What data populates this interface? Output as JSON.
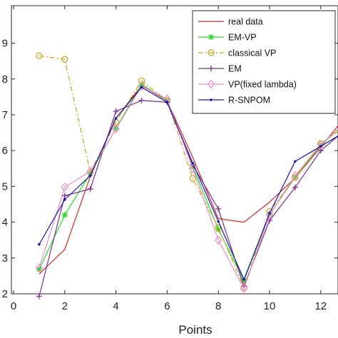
{
  "chart_data": {
    "type": "line",
    "xlabel": "Points",
    "ylabel": "",
    "xlim": [
      0,
      13
    ],
    "ylim": [
      0.2,
      0.9
    ],
    "x_ticks": [
      0,
      2,
      4,
      6,
      8,
      10,
      12
    ],
    "y_ticks": [
      0.2,
      0.3,
      0.4,
      0.5,
      0.6,
      0.7,
      0.8,
      0.9
    ],
    "y_tick_labels": [
      "2",
      "3",
      "4",
      "5",
      "6",
      "7",
      "8",
      "9"
    ],
    "grid": false,
    "legend_position": "top-right",
    "x": [
      1,
      2,
      3,
      4,
      5,
      6,
      7,
      8,
      9,
      10,
      11,
      12,
      13
    ],
    "series": [
      {
        "name": "real data",
        "color": "#d62728",
        "dash": "solid",
        "marker": "none",
        "values": [
          0.255,
          0.324,
          0.528,
          0.69,
          0.782,
          0.739,
          0.581,
          0.41,
          0.4,
          0.456,
          0.524,
          0.61,
          0.698
        ]
      },
      {
        "name": "EM-VP",
        "color": "#22dd22",
        "dash": "solid",
        "marker": "star",
        "values": [
          0.268,
          0.42,
          0.536,
          0.662,
          0.785,
          0.74,
          0.555,
          0.38,
          0.237,
          0.422,
          0.525,
          0.615,
          0.68
        ]
      },
      {
        "name": "classical VP",
        "color": "#c8a415",
        "dash": "dashdot",
        "marker": "circle",
        "values": [
          0.865,
          0.855,
          0.54,
          0.68,
          0.795,
          0.74,
          0.522,
          0.385,
          0.218,
          0.43,
          0.525,
          0.62,
          0.67
        ]
      },
      {
        "name": "EM",
        "color": "#7b2c8e",
        "dash": "solid",
        "marker": "plus",
        "values": [
          0.193,
          0.474,
          0.493,
          0.71,
          0.74,
          0.735,
          0.56,
          0.437,
          0.221,
          0.405,
          0.497,
          0.6,
          0.66
        ]
      },
      {
        "name": "VP(fixed lambda)",
        "color": "#f08ac9",
        "dash": "solid",
        "marker": "diamond",
        "values": [
          0.272,
          0.498,
          0.542,
          0.66,
          0.78,
          0.744,
          0.55,
          0.35,
          0.215,
          0.42,
          0.53,
          0.617,
          0.68
        ]
      },
      {
        "name": "R-SNPOM",
        "color": "#1a1aa6",
        "dash": "solid",
        "marker": "dot",
        "values": [
          0.338,
          0.463,
          0.53,
          0.69,
          0.777,
          0.735,
          0.565,
          0.402,
          0.24,
          0.425,
          0.57,
          0.612,
          0.655
        ]
      }
    ]
  }
}
